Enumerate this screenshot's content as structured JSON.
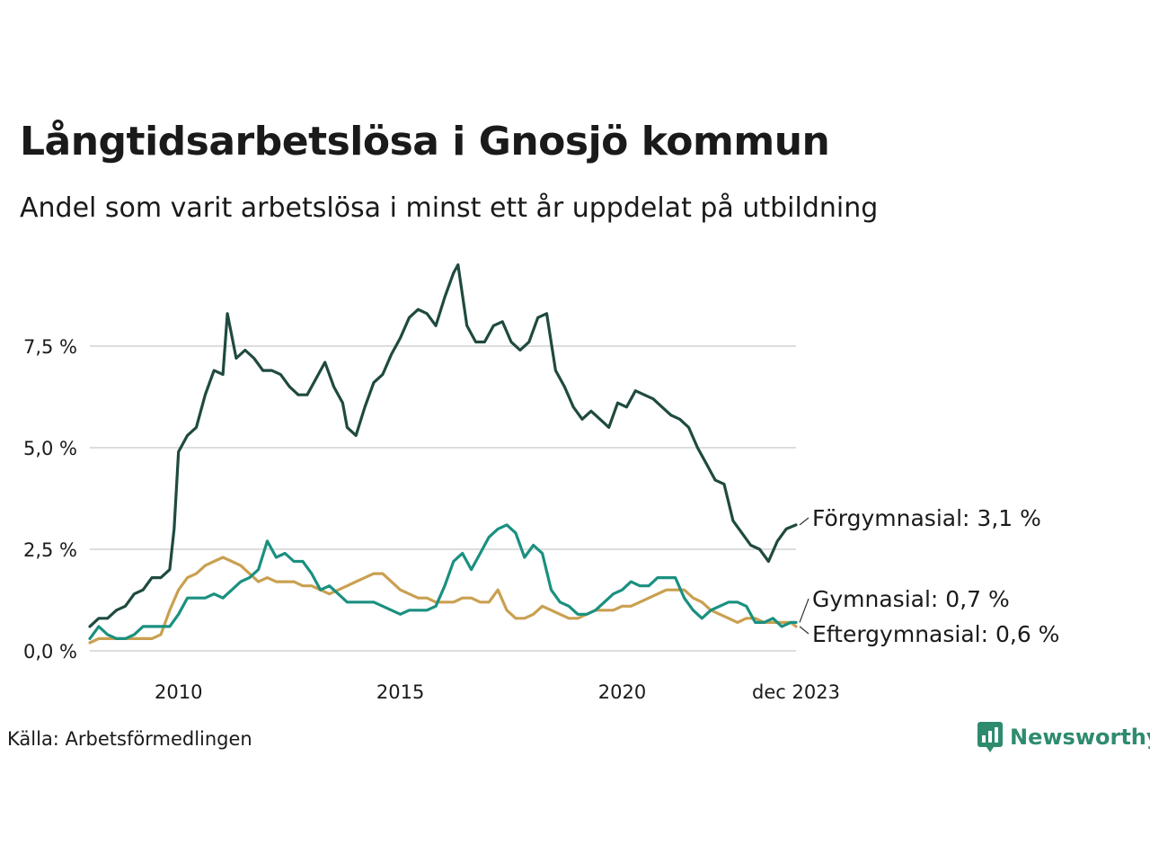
{
  "title": "Långtidsarbetslösa i Gnosjö kommun",
  "subtitle": "Andel som varit arbetslösa i minst ett år uppdelat på utbildning",
  "source": "Källa: Arbetsförmedlingen",
  "brand": "Newsworthy",
  "colors": {
    "forgymnasial": "#1f4a40",
    "gymnasial": "#1a9080",
    "eftergymnasial": "#c9a050",
    "grid": "#dddddd",
    "brand": "#2e8b6e"
  },
  "chart_data": {
    "type": "line",
    "title": "Långtidsarbetslösa i Gnosjö kommun",
    "xlabel": "",
    "ylabel": "",
    "xlim": [
      2008.0,
      2023.92
    ],
    "ylim": [
      0,
      9.6
    ],
    "x_ticks": [
      {
        "value": 2010,
        "label": "2010"
      },
      {
        "value": 2015,
        "label": "2015"
      },
      {
        "value": 2020,
        "label": "2020"
      },
      {
        "value": 2023.92,
        "label": "dec 2023"
      }
    ],
    "y_ticks": [
      {
        "value": 0,
        "label": "0,0 %"
      },
      {
        "value": 2.5,
        "label": "2,5 %"
      },
      {
        "value": 5.0,
        "label": "5,0 %"
      },
      {
        "value": 7.5,
        "label": "7,5 %"
      }
    ],
    "series": [
      {
        "name": "Förgymnasial",
        "end_label": "Förgymnasial: 3,1 %",
        "points": [
          [
            2008.0,
            0.6
          ],
          [
            2008.2,
            0.8
          ],
          [
            2008.4,
            0.8
          ],
          [
            2008.6,
            1.0
          ],
          [
            2008.8,
            1.1
          ],
          [
            2009.0,
            1.4
          ],
          [
            2009.2,
            1.5
          ],
          [
            2009.4,
            1.8
          ],
          [
            2009.6,
            1.8
          ],
          [
            2009.8,
            2.0
          ],
          [
            2009.9,
            3.0
          ],
          [
            2010.0,
            4.9
          ],
          [
            2010.2,
            5.3
          ],
          [
            2010.4,
            5.5
          ],
          [
            2010.6,
            6.3
          ],
          [
            2010.8,
            6.9
          ],
          [
            2011.0,
            6.8
          ],
          [
            2011.1,
            8.3
          ],
          [
            2011.3,
            7.2
          ],
          [
            2011.5,
            7.4
          ],
          [
            2011.7,
            7.2
          ],
          [
            2011.9,
            6.9
          ],
          [
            2012.1,
            6.9
          ],
          [
            2012.3,
            6.8
          ],
          [
            2012.5,
            6.5
          ],
          [
            2012.7,
            6.3
          ],
          [
            2012.9,
            6.3
          ],
          [
            2013.1,
            6.7
          ],
          [
            2013.3,
            7.1
          ],
          [
            2013.5,
            6.5
          ],
          [
            2013.7,
            6.1
          ],
          [
            2013.8,
            5.5
          ],
          [
            2014.0,
            5.3
          ],
          [
            2014.2,
            6.0
          ],
          [
            2014.4,
            6.6
          ],
          [
            2014.6,
            6.8
          ],
          [
            2014.8,
            7.3
          ],
          [
            2015.0,
            7.7
          ],
          [
            2015.2,
            8.2
          ],
          [
            2015.4,
            8.4
          ],
          [
            2015.6,
            8.3
          ],
          [
            2015.8,
            8.0
          ],
          [
            2016.0,
            8.7
          ],
          [
            2016.2,
            9.3
          ],
          [
            2016.3,
            9.5
          ],
          [
            2016.5,
            8.0
          ],
          [
            2016.7,
            7.6
          ],
          [
            2016.9,
            7.6
          ],
          [
            2017.1,
            8.0
          ],
          [
            2017.3,
            8.1
          ],
          [
            2017.5,
            7.6
          ],
          [
            2017.7,
            7.4
          ],
          [
            2017.9,
            7.6
          ],
          [
            2018.1,
            8.2
          ],
          [
            2018.3,
            8.3
          ],
          [
            2018.5,
            6.9
          ],
          [
            2018.7,
            6.5
          ],
          [
            2018.9,
            6.0
          ],
          [
            2019.1,
            5.7
          ],
          [
            2019.3,
            5.9
          ],
          [
            2019.5,
            5.7
          ],
          [
            2019.7,
            5.5
          ],
          [
            2019.9,
            6.1
          ],
          [
            2020.1,
            6.0
          ],
          [
            2020.3,
            6.4
          ],
          [
            2020.5,
            6.3
          ],
          [
            2020.7,
            6.2
          ],
          [
            2020.9,
            6.0
          ],
          [
            2021.1,
            5.8
          ],
          [
            2021.3,
            5.7
          ],
          [
            2021.5,
            5.5
          ],
          [
            2021.7,
            5.0
          ],
          [
            2021.9,
            4.6
          ],
          [
            2022.1,
            4.2
          ],
          [
            2022.3,
            4.1
          ],
          [
            2022.5,
            3.2
          ],
          [
            2022.7,
            2.9
          ],
          [
            2022.9,
            2.6
          ],
          [
            2023.1,
            2.5
          ],
          [
            2023.3,
            2.2
          ],
          [
            2023.5,
            2.7
          ],
          [
            2023.7,
            3.0
          ],
          [
            2023.92,
            3.1
          ]
        ]
      },
      {
        "name": "Gymnasial",
        "end_label": "Gymnasial: 0,7 %",
        "points": [
          [
            2008.0,
            0.3
          ],
          [
            2008.2,
            0.6
          ],
          [
            2008.4,
            0.4
          ],
          [
            2008.6,
            0.3
          ],
          [
            2008.8,
            0.3
          ],
          [
            2009.0,
            0.4
          ],
          [
            2009.2,
            0.6
          ],
          [
            2009.4,
            0.6
          ],
          [
            2009.6,
            0.6
          ],
          [
            2009.8,
            0.6
          ],
          [
            2010.0,
            0.9
          ],
          [
            2010.2,
            1.3
          ],
          [
            2010.4,
            1.3
          ],
          [
            2010.6,
            1.3
          ],
          [
            2010.8,
            1.4
          ],
          [
            2011.0,
            1.3
          ],
          [
            2011.2,
            1.5
          ],
          [
            2011.4,
            1.7
          ],
          [
            2011.6,
            1.8
          ],
          [
            2011.8,
            2.0
          ],
          [
            2012.0,
            2.7
          ],
          [
            2012.2,
            2.3
          ],
          [
            2012.4,
            2.4
          ],
          [
            2012.6,
            2.2
          ],
          [
            2012.8,
            2.2
          ],
          [
            2013.0,
            1.9
          ],
          [
            2013.2,
            1.5
          ],
          [
            2013.4,
            1.6
          ],
          [
            2013.6,
            1.4
          ],
          [
            2013.8,
            1.2
          ],
          [
            2014.0,
            1.2
          ],
          [
            2014.2,
            1.2
          ],
          [
            2014.4,
            1.2
          ],
          [
            2014.6,
            1.1
          ],
          [
            2014.8,
            1.0
          ],
          [
            2015.0,
            0.9
          ],
          [
            2015.2,
            1.0
          ],
          [
            2015.4,
            1.0
          ],
          [
            2015.6,
            1.0
          ],
          [
            2015.8,
            1.1
          ],
          [
            2016.0,
            1.6
          ],
          [
            2016.2,
            2.2
          ],
          [
            2016.4,
            2.4
          ],
          [
            2016.6,
            2.0
          ],
          [
            2016.8,
            2.4
          ],
          [
            2017.0,
            2.8
          ],
          [
            2017.2,
            3.0
          ],
          [
            2017.4,
            3.1
          ],
          [
            2017.6,
            2.9
          ],
          [
            2017.8,
            2.3
          ],
          [
            2018.0,
            2.6
          ],
          [
            2018.2,
            2.4
          ],
          [
            2018.4,
            1.5
          ],
          [
            2018.6,
            1.2
          ],
          [
            2018.8,
            1.1
          ],
          [
            2019.0,
            0.9
          ],
          [
            2019.2,
            0.9
          ],
          [
            2019.4,
            1.0
          ],
          [
            2019.6,
            1.2
          ],
          [
            2019.8,
            1.4
          ],
          [
            2020.0,
            1.5
          ],
          [
            2020.2,
            1.7
          ],
          [
            2020.4,
            1.6
          ],
          [
            2020.6,
            1.6
          ],
          [
            2020.8,
            1.8
          ],
          [
            2021.0,
            1.8
          ],
          [
            2021.2,
            1.8
          ],
          [
            2021.4,
            1.3
          ],
          [
            2021.6,
            1.0
          ],
          [
            2021.8,
            0.8
          ],
          [
            2022.0,
            1.0
          ],
          [
            2022.2,
            1.1
          ],
          [
            2022.4,
            1.2
          ],
          [
            2022.6,
            1.2
          ],
          [
            2022.8,
            1.1
          ],
          [
            2023.0,
            0.7
          ],
          [
            2023.2,
            0.7
          ],
          [
            2023.4,
            0.8
          ],
          [
            2023.6,
            0.6
          ],
          [
            2023.8,
            0.7
          ],
          [
            2023.92,
            0.7
          ]
        ]
      },
      {
        "name": "Eftergymnasial",
        "end_label": "Eftergymnasial: 0,6 %",
        "points": [
          [
            2008.0,
            0.2
          ],
          [
            2008.2,
            0.3
          ],
          [
            2008.4,
            0.3
          ],
          [
            2008.6,
            0.3
          ],
          [
            2008.8,
            0.3
          ],
          [
            2009.0,
            0.3
          ],
          [
            2009.2,
            0.3
          ],
          [
            2009.4,
            0.3
          ],
          [
            2009.6,
            0.4
          ],
          [
            2009.8,
            1.0
          ],
          [
            2010.0,
            1.5
          ],
          [
            2010.2,
            1.8
          ],
          [
            2010.4,
            1.9
          ],
          [
            2010.6,
            2.1
          ],
          [
            2010.8,
            2.2
          ],
          [
            2011.0,
            2.3
          ],
          [
            2011.2,
            2.2
          ],
          [
            2011.4,
            2.1
          ],
          [
            2011.6,
            1.9
          ],
          [
            2011.8,
            1.7
          ],
          [
            2012.0,
            1.8
          ],
          [
            2012.2,
            1.7
          ],
          [
            2012.4,
            1.7
          ],
          [
            2012.6,
            1.7
          ],
          [
            2012.8,
            1.6
          ],
          [
            2013.0,
            1.6
          ],
          [
            2013.2,
            1.5
          ],
          [
            2013.4,
            1.4
          ],
          [
            2013.6,
            1.5
          ],
          [
            2013.8,
            1.6
          ],
          [
            2014.0,
            1.7
          ],
          [
            2014.2,
            1.8
          ],
          [
            2014.4,
            1.9
          ],
          [
            2014.6,
            1.9
          ],
          [
            2014.8,
            1.7
          ],
          [
            2015.0,
            1.5
          ],
          [
            2015.2,
            1.4
          ],
          [
            2015.4,
            1.3
          ],
          [
            2015.6,
            1.3
          ],
          [
            2015.8,
            1.2
          ],
          [
            2016.0,
            1.2
          ],
          [
            2016.2,
            1.2
          ],
          [
            2016.4,
            1.3
          ],
          [
            2016.6,
            1.3
          ],
          [
            2016.8,
            1.2
          ],
          [
            2017.0,
            1.2
          ],
          [
            2017.2,
            1.5
          ],
          [
            2017.4,
            1.0
          ],
          [
            2017.6,
            0.8
          ],
          [
            2017.8,
            0.8
          ],
          [
            2018.0,
            0.9
          ],
          [
            2018.2,
            1.1
          ],
          [
            2018.4,
            1.0
          ],
          [
            2018.6,
            0.9
          ],
          [
            2018.8,
            0.8
          ],
          [
            2019.0,
            0.8
          ],
          [
            2019.2,
            0.9
          ],
          [
            2019.4,
            1.0
          ],
          [
            2019.6,
            1.0
          ],
          [
            2019.8,
            1.0
          ],
          [
            2020.0,
            1.1
          ],
          [
            2020.2,
            1.1
          ],
          [
            2020.4,
            1.2
          ],
          [
            2020.6,
            1.3
          ],
          [
            2020.8,
            1.4
          ],
          [
            2021.0,
            1.5
          ],
          [
            2021.2,
            1.5
          ],
          [
            2021.4,
            1.5
          ],
          [
            2021.6,
            1.3
          ],
          [
            2021.8,
            1.2
          ],
          [
            2022.0,
            1.0
          ],
          [
            2022.2,
            0.9
          ],
          [
            2022.4,
            0.8
          ],
          [
            2022.6,
            0.7
          ],
          [
            2022.8,
            0.8
          ],
          [
            2023.0,
            0.8
          ],
          [
            2023.2,
            0.7
          ],
          [
            2023.4,
            0.7
          ],
          [
            2023.6,
            0.7
          ],
          [
            2023.8,
            0.7
          ],
          [
            2023.92,
            0.6
          ]
        ]
      }
    ]
  }
}
